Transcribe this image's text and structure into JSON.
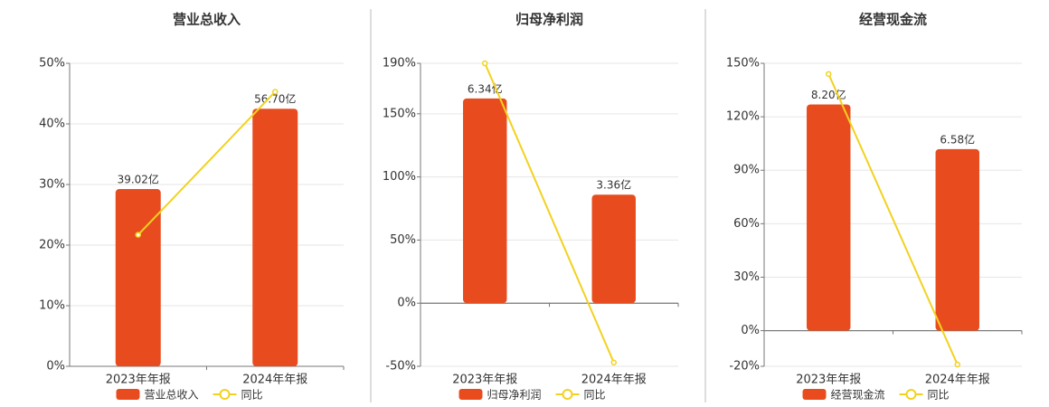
{
  "chart_data": [
    {
      "type": "bar-line",
      "title": "营业总收入",
      "categories": [
        "2023年年报",
        "2024年年报"
      ],
      "series": [
        {
          "name": "营业总收入",
          "color": "#e84c1e",
          "axis": "y2",
          "values": [
            39.02,
            56.7
          ],
          "value_labels": [
            "39.02亿",
            "56.70亿"
          ]
        },
        {
          "name": "同比",
          "color": "#f2d21f",
          "axis": "y",
          "values": [
            21.7,
            45.3
          ]
        }
      ],
      "ylim": [
        0,
        50
      ],
      "yticks": [
        {
          "value": 0,
          "label": "0%"
        },
        {
          "value": 10,
          "label": "10%"
        },
        {
          "value": 20,
          "label": "20%"
        },
        {
          "value": 30,
          "label": "30%"
        },
        {
          "value": 40,
          "label": "40%"
        },
        {
          "value": 50,
          "label": "50%"
        }
      ],
      "y2lim": [
        0,
        66.7
      ],
      "grid": true
    },
    {
      "type": "bar-line",
      "title": "归母净利润",
      "categories": [
        "2023年年报",
        "2024年年报"
      ],
      "series": [
        {
          "name": "归母净利润",
          "color": "#e84c1e",
          "axis": "y2",
          "values": [
            6.34,
            3.36
          ],
          "value_labels": [
            "6.34亿",
            "3.36亿"
          ]
        },
        {
          "name": "同比",
          "color": "#f2d21f",
          "axis": "y",
          "values": [
            190,
            -47
          ]
        }
      ],
      "ylim": [
        -50,
        190
      ],
      "yticks": [
        {
          "value": -50,
          "label": "-50%"
        },
        {
          "value": 0,
          "label": "0%"
        },
        {
          "value": 50,
          "label": "50%"
        },
        {
          "value": 100,
          "label": "100%"
        },
        {
          "value": 150,
          "label": "150%"
        },
        {
          "value": 190,
          "label": "190%"
        }
      ],
      "y2lim": [
        -1.96,
        7.43
      ],
      "grid": true
    },
    {
      "type": "bar-line",
      "title": "经营现金流",
      "categories": [
        "2023年年报",
        "2024年年报"
      ],
      "series": [
        {
          "name": "经营现金流",
          "color": "#e84c1e",
          "axis": "y2",
          "values": [
            8.2,
            6.58
          ],
          "value_labels": [
            "8.20亿",
            "6.58亿"
          ]
        },
        {
          "name": "同比",
          "color": "#f2d21f",
          "axis": "y",
          "values": [
            144,
            -19
          ]
        }
      ],
      "ylim": [
        -20,
        150
      ],
      "yticks": [
        {
          "value": -20,
          "label": "-20%"
        },
        {
          "value": 0,
          "label": "0%"
        },
        {
          "value": 30,
          "label": "30%"
        },
        {
          "value": 60,
          "label": "60%"
        },
        {
          "value": 90,
          "label": "90%"
        },
        {
          "value": 120,
          "label": "120%"
        },
        {
          "value": 150,
          "label": "150%"
        }
      ],
      "y2lim": [
        -1.29,
        9.69
      ],
      "grid": true
    }
  ]
}
